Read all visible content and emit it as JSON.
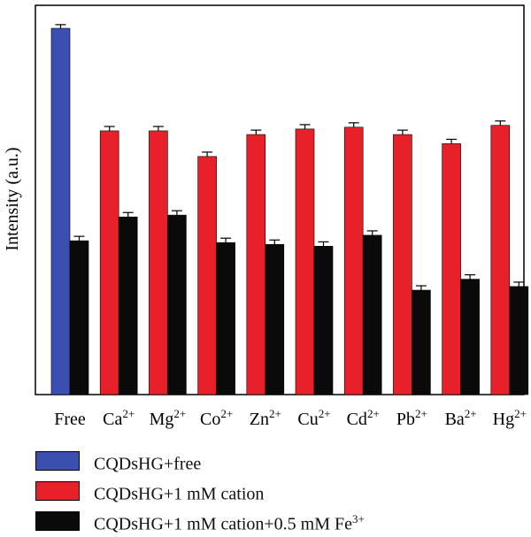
{
  "chart_data": {
    "type": "bar",
    "ylabel": "Intensity (a.u.)",
    "categories": [
      {
        "base": "Free",
        "sup": ""
      },
      {
        "base": "Ca",
        "sup": "2+"
      },
      {
        "base": "Mg",
        "sup": "2+"
      },
      {
        "base": "Co",
        "sup": "2+"
      },
      {
        "base": "Zn",
        "sup": "2+"
      },
      {
        "base": "Cu",
        "sup": "2+"
      },
      {
        "base": "Cd",
        "sup": "2+"
      },
      {
        "base": "Pb",
        "sup": "2+"
      },
      {
        "base": "Ba",
        "sup": "2+"
      },
      {
        "base": "Hg",
        "sup": "2+"
      }
    ],
    "ylim": [
      0,
      100
    ],
    "series": [
      {
        "name": "CQDsHG+free",
        "color": "#3a4fb0",
        "values": [
          100,
          null,
          null,
          null,
          null,
          null,
          null,
          null,
          null,
          null
        ],
        "errors": [
          1.0,
          null,
          null,
          null,
          null,
          null,
          null,
          null,
          null,
          null
        ]
      },
      {
        "name": "CQDsHG+1 mM cation",
        "color": "#e8202a",
        "values": [
          null,
          72,
          72,
          65,
          71,
          72.5,
          73,
          71,
          68.5,
          73.5
        ],
        "errors": [
          null,
          1.2,
          1.2,
          1.2,
          1.2,
          1.2,
          1.2,
          1.2,
          1.2,
          1.2
        ]
      },
      {
        "name": "CQDsHG+1 mM cation+0.5 mM Fe3+",
        "color": "#0a0a0a",
        "values": [
          42,
          48.5,
          49,
          41.5,
          41,
          40.5,
          43.5,
          28.5,
          31.5,
          29.5
        ],
        "errors": [
          1.2,
          1.2,
          1.2,
          1.2,
          1.2,
          1.2,
          1.2,
          1.2,
          1.2,
          1.2
        ]
      }
    ],
    "grid": false,
    "legend_position": "bottom-left"
  },
  "legend": [
    {
      "base": "CQDsHG+free",
      "sup": "",
      "color": "#3a4fb0"
    },
    {
      "base": "CQDsHG+1 mM cation",
      "sup": "",
      "color": "#e8202a"
    },
    {
      "base": "CQDsHG+1 mM cation+0.5 mM Fe",
      "sup": "3+",
      "color": "#0a0a0a"
    }
  ]
}
